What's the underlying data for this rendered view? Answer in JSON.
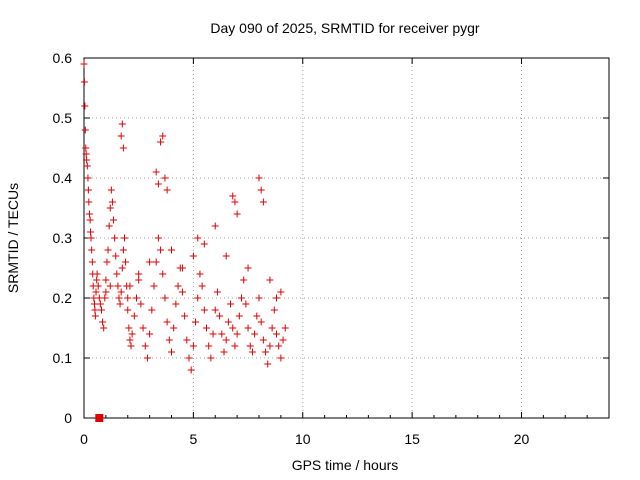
{
  "chart_data": {
    "type": "scatter",
    "title": "Day 090 of 2025, SRMTID for receiver pygr",
    "xlabel": "GPS time / hours",
    "ylabel": "SRMTID / TECUs",
    "xlim": [
      0,
      24
    ],
    "ylim": [
      0,
      0.6
    ],
    "xticks": [
      0,
      5,
      10,
      15,
      20
    ],
    "yticks": [
      0,
      0.1,
      0.2,
      0.3,
      0.4,
      0.5,
      0.6
    ],
    "grid": true,
    "marker": "+",
    "color": "#e00000",
    "series": [
      {
        "name": "SRMTID",
        "x": [
          0.0,
          0.02,
          0.04,
          0.06,
          0.08,
          0.1,
          0.12,
          0.15,
          0.18,
          0.2,
          0.22,
          0.25,
          0.28,
          0.3,
          0.32,
          0.35,
          0.38,
          0.4,
          0.42,
          0.45,
          0.48,
          0.5,
          0.52,
          0.55,
          0.58,
          0.6,
          0.65,
          0.7,
          0.75,
          0.8,
          0.85,
          0.9,
          0.95,
          1.0,
          1.05,
          1.1,
          1.15,
          1.2,
          1.25,
          1.3,
          1.35,
          1.4,
          1.45,
          1.5,
          1.55,
          1.6,
          1.65,
          1.7,
          1.75,
          1.8,
          1.85,
          1.9,
          1.95,
          2.0,
          2.05,
          2.1,
          2.15,
          2.2,
          2.3,
          2.4,
          2.5,
          2.6,
          2.7,
          2.8,
          2.9,
          3.0,
          3.1,
          3.2,
          3.3,
          3.4,
          3.5,
          3.6,
          3.7,
          3.8,
          3.9,
          4.0,
          4.1,
          4.2,
          4.3,
          4.4,
          4.5,
          4.6,
          4.7,
          4.8,
          4.9,
          5.0,
          5.1,
          5.2,
          5.3,
          5.4,
          5.5,
          5.6,
          5.7,
          5.8,
          5.9,
          6.0,
          6.1,
          6.2,
          6.3,
          6.4,
          6.5,
          6.6,
          6.7,
          6.8,
          6.9,
          7.0,
          7.1,
          7.2,
          7.3,
          7.4,
          7.5,
          7.6,
          7.7,
          7.8,
          7.9,
          8.0,
          8.1,
          8.2,
          8.3,
          8.4,
          8.5,
          8.6,
          8.7,
          8.8,
          8.9,
          9.0,
          9.1,
          9.2,
          1.7,
          1.75,
          1.8,
          3.5,
          3.6,
          3.7,
          3.3,
          3.4,
          3.8,
          6.8,
          6.9,
          8.0,
          8.1,
          8.2,
          2.0,
          2.1,
          4.5,
          5.0,
          5.5,
          6.5,
          7.5,
          8.5,
          1.0,
          1.2,
          2.5,
          3.0,
          4.0,
          5.2,
          6.0,
          7.0,
          8.8,
          9.0
        ],
        "y": [
          0.59,
          0.56,
          0.52,
          0.48,
          0.45,
          0.44,
          0.43,
          0.42,
          0.4,
          0.38,
          0.36,
          0.34,
          0.33,
          0.31,
          0.3,
          0.28,
          0.26,
          0.24,
          0.22,
          0.2,
          0.19,
          0.18,
          0.17,
          0.21,
          0.23,
          0.24,
          0.22,
          0.2,
          0.19,
          0.18,
          0.16,
          0.15,
          0.2,
          0.23,
          0.26,
          0.28,
          0.32,
          0.35,
          0.38,
          0.36,
          0.33,
          0.3,
          0.27,
          0.24,
          0.22,
          0.2,
          0.19,
          0.21,
          0.25,
          0.28,
          0.3,
          0.26,
          0.22,
          0.18,
          0.15,
          0.13,
          0.12,
          0.14,
          0.17,
          0.2,
          0.23,
          0.19,
          0.15,
          0.12,
          0.1,
          0.14,
          0.18,
          0.22,
          0.26,
          0.3,
          0.28,
          0.24,
          0.2,
          0.16,
          0.13,
          0.11,
          0.15,
          0.19,
          0.22,
          0.25,
          0.21,
          0.17,
          0.13,
          0.1,
          0.08,
          0.12,
          0.16,
          0.2,
          0.24,
          0.22,
          0.18,
          0.15,
          0.12,
          0.1,
          0.14,
          0.18,
          0.21,
          0.17,
          0.14,
          0.11,
          0.13,
          0.16,
          0.19,
          0.15,
          0.12,
          0.14,
          0.17,
          0.2,
          0.23,
          0.19,
          0.15,
          0.12,
          0.11,
          0.14,
          0.17,
          0.2,
          0.16,
          0.13,
          0.11,
          0.09,
          0.12,
          0.15,
          0.18,
          0.14,
          0.12,
          0.1,
          0.13,
          0.15,
          0.47,
          0.49,
          0.45,
          0.46,
          0.47,
          0.4,
          0.41,
          0.39,
          0.38,
          0.37,
          0.36,
          0.4,
          0.38,
          0.36,
          0.2,
          0.22,
          0.25,
          0.27,
          0.29,
          0.27,
          0.25,
          0.23,
          0.21,
          0.22,
          0.24,
          0.26,
          0.28,
          0.3,
          0.32,
          0.34,
          0.2,
          0.21
        ],
        "extra_marker": {
          "x": 0.7,
          "y": 0.0,
          "shape": "square"
        }
      }
    ]
  }
}
